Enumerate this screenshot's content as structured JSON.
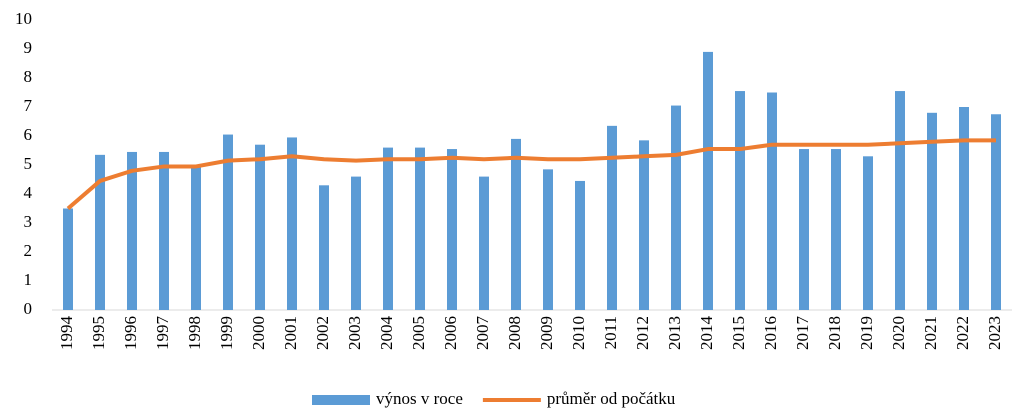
{
  "chart_data": {
    "type": "bar",
    "categories": [
      "1994",
      "1995",
      "1996",
      "1997",
      "1998",
      "1999",
      "2000",
      "2001",
      "2002",
      "2003",
      "2004",
      "2005",
      "2006",
      "2007",
      "2008",
      "2009",
      "2010",
      "2011",
      "2012",
      "2013",
      "2014",
      "2015",
      "2016",
      "2017",
      "2018",
      "2019",
      "2020",
      "2021",
      "2022",
      "2023"
    ],
    "series": [
      {
        "name": "výnos v roce",
        "type": "bar",
        "color": "#5b9bd5",
        "values": [
          3.5,
          5.35,
          5.45,
          5.45,
          4.95,
          6.05,
          5.7,
          5.95,
          4.3,
          4.6,
          5.6,
          5.6,
          5.55,
          4.6,
          5.9,
          4.85,
          4.45,
          6.35,
          5.85,
          7.05,
          8.9,
          7.55,
          7.5,
          5.55,
          5.55,
          5.3,
          7.55,
          6.8,
          7.0,
          6.75
        ]
      },
      {
        "name": "průměr od počátku",
        "type": "line",
        "color": "#ed7d31",
        "values": [
          3.5,
          4.45,
          4.8,
          4.95,
          4.95,
          5.15,
          5.2,
          5.3,
          5.2,
          5.15,
          5.2,
          5.2,
          5.25,
          5.2,
          5.25,
          5.2,
          5.2,
          5.25,
          5.3,
          5.35,
          5.55,
          5.55,
          5.7,
          5.7,
          5.7,
          5.7,
          5.75,
          5.8,
          5.85,
          5.85
        ]
      }
    ],
    "ylim": [
      0,
      10
    ],
    "yticks": [
      0,
      1,
      2,
      3,
      4,
      5,
      6,
      7,
      8,
      9,
      10
    ],
    "grid": false,
    "legend": "bottom"
  }
}
